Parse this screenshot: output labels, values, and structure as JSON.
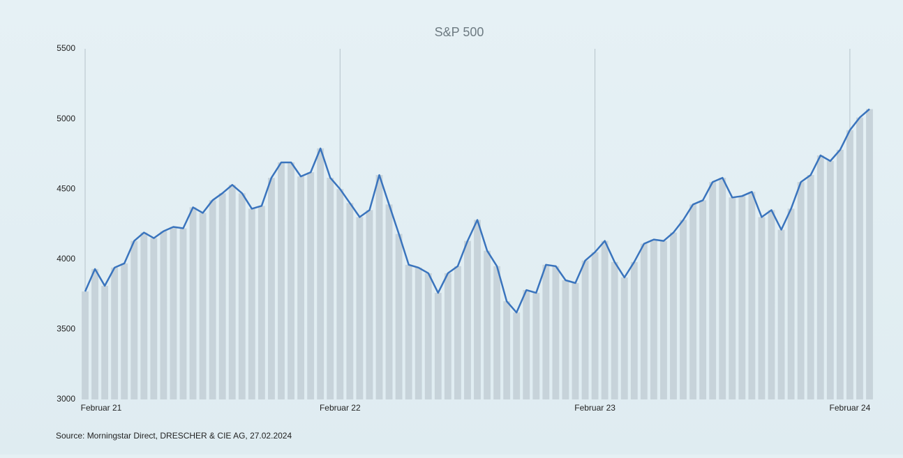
{
  "chart_data": {
    "type": "line",
    "title": "S&P 500",
    "source": "Source: Morningstar Direct, DRESCHER & CIE AG, 27.02.2024",
    "categories": [
      "Februar 21",
      null,
      null,
      null,
      null,
      null,
      null,
      null,
      null,
      null,
      null,
      null,
      null,
      null,
      null,
      null,
      null,
      null,
      null,
      null,
      null,
      null,
      null,
      null,
      null,
      null,
      "Februar 22",
      null,
      null,
      null,
      null,
      null,
      null,
      null,
      null,
      null,
      null,
      null,
      null,
      null,
      null,
      null,
      null,
      null,
      null,
      null,
      null,
      null,
      null,
      null,
      null,
      null,
      "Februar 23",
      null,
      null,
      null,
      null,
      null,
      null,
      null,
      null,
      null,
      null,
      null,
      null,
      null,
      null,
      null,
      null,
      null,
      null,
      null,
      null,
      null,
      null,
      null,
      null,
      null,
      "Februar 24",
      null,
      null
    ],
    "series": [
      {
        "name": "S&P 500",
        "color": "#3a74bd",
        "values": [
          3770,
          3930,
          3810,
          3940,
          3970,
          4130,
          4190,
          4150,
          4200,
          4230,
          4220,
          4370,
          4330,
          4420,
          4470,
          4530,
          4470,
          4360,
          4380,
          4580,
          4690,
          4690,
          4590,
          4620,
          4790,
          4580,
          4500,
          4400,
          4300,
          4350,
          4600,
          4390,
          4180,
          3960,
          3940,
          3900,
          3760,
          3900,
          3950,
          4130,
          4280,
          4060,
          3950,
          3700,
          3620,
          3780,
          3760,
          3960,
          3950,
          3850,
          3830,
          3990,
          4050,
          4130,
          3980,
          3870,
          3980,
          4110,
          4140,
          4130,
          4190,
          4280,
          4390,
          4420,
          4550,
          4580,
          4440,
          4450,
          4480,
          4300,
          4350,
          4210,
          4360,
          4550,
          4600,
          4740,
          4700,
          4780,
          4920,
          5010,
          5070
        ]
      }
    ],
    "ylim": [
      3000,
      5500
    ],
    "yticks": [
      3000,
      3500,
      4000,
      4500,
      5000,
      5500
    ],
    "bar_color": "#c7d3da",
    "grid": true
  }
}
